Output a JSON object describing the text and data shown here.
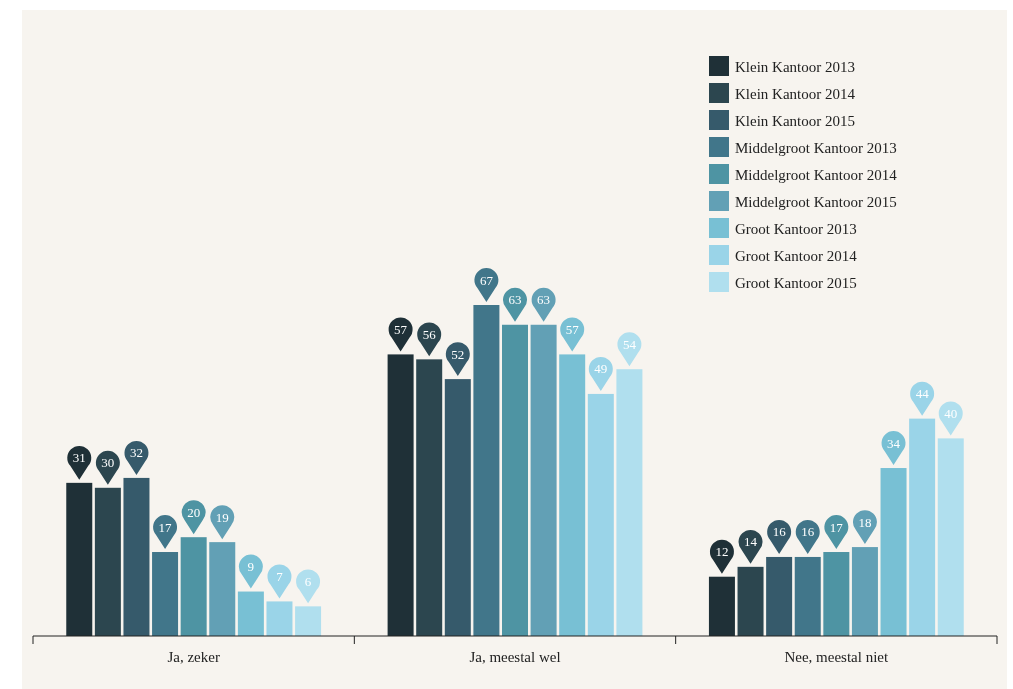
{
  "chart_data": {
    "type": "bar",
    "categories": [
      "Ja, zeker",
      "Ja, meestal wel",
      "Nee, meestal niet"
    ],
    "data_labels": true,
    "legend": "top right",
    "series": [
      {
        "name": "Klein Kantoor 2013",
        "color": "#1f3037",
        "values": [
          31,
          57,
          12
        ]
      },
      {
        "name": "Klein Kantoor 2014",
        "color": "#2c464f",
        "values": [
          30,
          56,
          14
        ]
      },
      {
        "name": "Klein Kantoor 2015",
        "color": "#365a6b",
        "values": [
          32,
          52,
          16
        ]
      },
      {
        "name": "Middelgroot Kantoor 2013",
        "color": "#41768a",
        "values": [
          17,
          67,
          16
        ]
      },
      {
        "name": "Middelgroot Kantoor 2014",
        "color": "#4e94a3",
        "values": [
          20,
          63,
          17
        ]
      },
      {
        "name": "Middelgroot Kantoor 2015",
        "color": "#62a0b5",
        "values": [
          19,
          63,
          18
        ]
      },
      {
        "name": "Groot Kantoor 2013",
        "color": "#78c0d4",
        "values": [
          9,
          57,
          34
        ]
      },
      {
        "name": "Groot Kantoor 2014",
        "color": "#9ad4e8",
        "values": [
          7,
          49,
          44
        ]
      },
      {
        "name": "Groot Kantoor 2015",
        "color": "#b0dfee",
        "values": [
          6,
          54,
          40
        ]
      }
    ]
  }
}
